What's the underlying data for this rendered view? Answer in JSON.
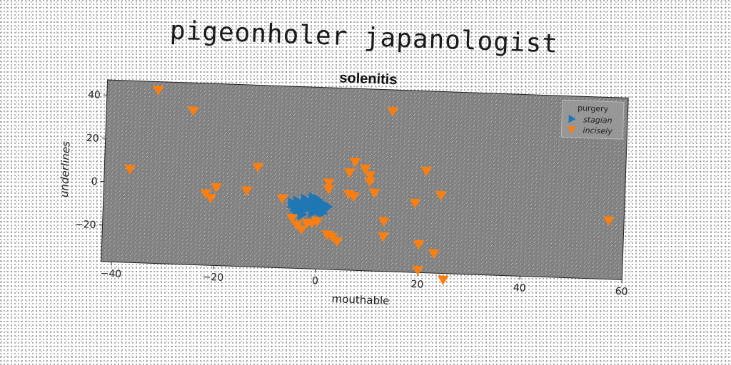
{
  "banner_title": "pigeonholer japanologist",
  "chart_data": {
    "type": "scatter",
    "title": "solenitis",
    "xlabel": "mouthable",
    "ylabel": "underlines",
    "xlim": [
      -42,
      60
    ],
    "ylim": [
      -37,
      47
    ],
    "xticks": [
      -40,
      -20,
      0,
      20,
      40,
      60
    ],
    "yticks": [
      -20,
      0,
      20,
      40
    ],
    "grid": false,
    "legend": {
      "title": "purgery",
      "position": "top-right"
    },
    "background": "#808080",
    "series": [
      {
        "name": "stagian",
        "marker": "triangle-right",
        "color": "#1f77b4",
        "points": [
          [
            -5,
            -7
          ],
          [
            -4.5,
            -9
          ],
          [
            -4,
            -6
          ],
          [
            -3.5,
            -10
          ],
          [
            -3,
            -8
          ],
          [
            -2.5,
            -5
          ],
          [
            -2,
            -9
          ],
          [
            -1.5,
            -7
          ],
          [
            -1,
            -11
          ],
          [
            -0.5,
            -6
          ],
          [
            0,
            -8
          ],
          [
            0.5,
            -10
          ],
          [
            1,
            -7
          ],
          [
            1.5,
            -9
          ],
          [
            2,
            -8
          ],
          [
            -3,
            -12
          ],
          [
            -1,
            -4
          ],
          [
            -4,
            -11
          ],
          [
            0,
            -5
          ],
          [
            1,
            -11
          ],
          [
            -2,
            -6
          ],
          [
            -0.5,
            -9.5
          ],
          [
            -3.5,
            -7
          ],
          [
            0.5,
            -6.5
          ]
        ]
      },
      {
        "name": "incisely",
        "marker": "triangle-down",
        "color": "#ff7f0e",
        "points": [
          [
            -32,
            43
          ],
          [
            -25,
            34
          ],
          [
            14,
            37
          ],
          [
            -37,
            6
          ],
          [
            -12,
            9
          ],
          [
            -22,
            -4
          ],
          [
            -21,
            -6
          ],
          [
            -20,
            -1
          ],
          [
            -14,
            -2
          ],
          [
            -7,
            -5
          ],
          [
            -5,
            -14
          ],
          [
            -4,
            -17
          ],
          [
            -3,
            -19
          ],
          [
            -2,
            -16
          ],
          [
            -1,
            -16
          ],
          [
            0,
            -15
          ],
          [
            2,
            -21
          ],
          [
            3,
            -22
          ],
          [
            4,
            -24
          ],
          [
            2,
            3
          ],
          [
            2,
            0
          ],
          [
            6,
            8
          ],
          [
            7,
            13
          ],
          [
            6,
            -2
          ],
          [
            7,
            -3
          ],
          [
            9,
            10
          ],
          [
            10,
            7
          ],
          [
            10,
            4
          ],
          [
            11,
            -1
          ],
          [
            13,
            -14
          ],
          [
            13,
            -21
          ],
          [
            19,
            -5
          ],
          [
            21,
            10
          ],
          [
            24,
            -1
          ],
          [
            20,
            -24
          ],
          [
            23,
            -28
          ],
          [
            20,
            -36
          ],
          [
            25,
            -40
          ],
          [
            57,
            -10
          ]
        ]
      }
    ]
  }
}
